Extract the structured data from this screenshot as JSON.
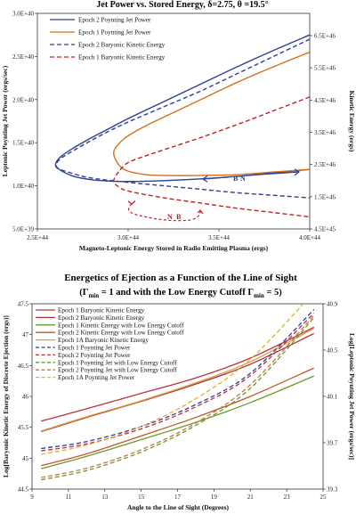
{
  "chart_data": [
    {
      "type": "line",
      "title": "Jet Power vs. Stored Energy, δ=2.75, θ =19.5°",
      "xlabel": "Magneto-Leptonic Energy Stored in Radio Emitting Plasma (ergs)",
      "ylabel": "Leptonic Poynting Jet Power (ergs/sec)",
      "y2label": "Kinetic Energy (ergs)",
      "xlim": [
        2.5e+44,
        4e+44
      ],
      "ylim": [
        5e+39,
        3e+40
      ],
      "y2lim": [
        4.5e+45,
        7e+46
      ],
      "x_ticks": [
        "2.5E+44",
        "3.0E+44",
        "3.5E+44",
        "4.0E+44"
      ],
      "y_ticks": [
        "5.0E+39",
        "1.0E+40",
        "1.5E+40",
        "2.0E+40",
        "2.5E+40",
        "3.0E+40"
      ],
      "y2_ticks": [
        "4.5E+45",
        "1.5E+46",
        "2.5E+46",
        "3.5E+46",
        "4.5E+46",
        "5.5E+46",
        "6.5E+46"
      ],
      "legend_position": "top-left",
      "grid": false,
      "series": [
        {
          "name": "Epoch 2 Poynting Jet Power",
          "color": "#2e3f94",
          "dash": "solid",
          "axis": "left",
          "x": [
            4e+44,
            3.8e+44,
            3.6e+44,
            3.4e+44,
            3.2e+44,
            3e+44,
            2.9e+44,
            2.8e+44,
            2.7e+44,
            2.63e+44,
            2.6e+44,
            2.62e+44,
            2.7e+44,
            2.8e+44,
            2.9e+44,
            3e+44,
            3.2e+44,
            3.4e+44,
            3.6e+44,
            3.8e+44,
            4e+44
          ],
          "y": [
            2.75e+40,
            2.57e+40,
            2.38e+40,
            2.18e+40,
            1.98e+40,
            1.78e+40,
            1.67e+40,
            1.56e+40,
            1.44e+40,
            1.34e+40,
            1.25e+40,
            1.19e+40,
            1.11e+40,
            1.07e+40,
            1.055e+40,
            1.05e+40,
            1.06e+40,
            1.08e+40,
            1.11e+40,
            1.15e+40,
            1.19e+40
          ]
        },
        {
          "name": "Epoch 1 Poynting Jet Power",
          "color": "#d4701a",
          "dash": "solid",
          "axis": "left",
          "x": [
            4e+44,
            3.8e+44,
            3.6e+44,
            3.4e+44,
            3.2e+44,
            3.1e+44,
            3e+44,
            2.95e+44,
            2.92e+44,
            2.95e+44,
            3e+44,
            3.1e+44,
            3.2e+44,
            3.4e+44,
            3.6e+44,
            3.8e+44,
            4e+44
          ],
          "y": [
            2.55e+40,
            2.38e+40,
            2.2e+40,
            2e+40,
            1.8e+40,
            1.7e+40,
            1.58e+40,
            1.49e+40,
            1.38e+40,
            1.24e+40,
            1.17e+40,
            1.13e+40,
            1.12e+40,
            1.12e+40,
            1.13e+40,
            1.16e+40,
            1.19e+40
          ]
        },
        {
          "name": "Epoch 2 Baryonic Kinetic Energy",
          "color": "#2e3f94",
          "dash": "dash",
          "axis": "left",
          "x": [
            4e+44,
            3.8e+44,
            3.6e+44,
            3.4e+44,
            3.2e+44,
            3e+44,
            2.9e+44,
            2.8e+44,
            2.7e+44,
            2.62e+44,
            2.61e+44,
            2.7e+44,
            2.8e+44,
            3e+44,
            3.2e+44,
            3.4e+44,
            3.6e+44,
            3.8e+44,
            4e+44
          ],
          "y": [
            2.7e+40,
            2.5e+40,
            2.3e+40,
            2.1e+40,
            1.92e+40,
            1.74e+40,
            1.64e+40,
            1.53e+40,
            1.41e+40,
            1.3e+40,
            1.21e+40,
            1.14e+40,
            1.09e+40,
            1.04e+40,
            1e+40,
            9.6e+39,
            9.2e+39,
            8.9e+39,
            8.6e+39
          ]
        },
        {
          "name": "Epoch 1 Baryonic Kinetic Energy",
          "color": "#bf2025",
          "dash": "dash",
          "axis": "left",
          "x": [
            4e+44,
            3.8e+44,
            3.6e+44,
            3.4e+44,
            3.2e+44,
            3.1e+44,
            3e+44,
            2.95e+44,
            2.92e+44,
            2.94e+44,
            3e+44,
            3.2e+44,
            3.4e+44,
            3.6e+44,
            3.8e+44,
            4e+44
          ],
          "y": [
            2.03e+40,
            1.87e+40,
            1.71e+40,
            1.56e+40,
            1.42e+40,
            1.35e+40,
            1.27e+40,
            1.17e+40,
            1.06e+40,
            1e+40,
            9.4e+39,
            8.6e+39,
            8e+39,
            7.4e+39,
            6.9e+39,
            6.4e+39
          ]
        }
      ],
      "annotations": [
        {
          "text": "B",
          "color": "#2e3f94",
          "x": 3.76e+44,
          "y": 1.01e+40
        },
        {
          "text": "N",
          "color": "#2e3f94",
          "x": 3.85e+44,
          "y": 1.01e+40
        },
        {
          "text": "N",
          "color": "#bf2025",
          "x": 3.05e+44,
          "y": 6.4e+39
        },
        {
          "text": "B",
          "color": "#bf2025",
          "x": 3.14e+44,
          "y": 6.4e+39
        }
      ]
    },
    {
      "type": "line",
      "title": "Energetics of Ejection as a Function of the Line of Sight",
      "subtitle_parts": [
        "(Γ",
        "min",
        " = 1 and with the Low Energy Cutoff Γ",
        "min",
        " = 5)"
      ],
      "xlabel": "Angle to the Line of Sight (Degrees)",
      "ylabel": "Log[Baryonic Kinetic Energy of Discrete Ejection (ergs)]",
      "y2label": "Log[Leptonic Poynting Jet Power (ergs/sec)]",
      "xlim": [
        9,
        25
      ],
      "ylim": [
        44.5,
        47.5
      ],
      "y2lim": [
        39.3,
        40.9
      ],
      "x_ticks": [
        "9",
        "11",
        "13",
        "15",
        "17",
        "19",
        "21",
        "23",
        "25"
      ],
      "y_ticks": [
        "44.5",
        "45",
        "45.5",
        "46",
        "46.5",
        "47",
        "47.5"
      ],
      "y2_ticks": [
        "39.3",
        "39.7",
        "40.1",
        "40.5",
        "40.9"
      ],
      "legend_position": "top-left",
      "grid": false,
      "x": [
        9.5,
        12,
        15,
        18,
        21,
        24.5
      ],
      "series": [
        {
          "name": "Epoch 1 Baryonic Kinetic Energy",
          "color": "#c0303a",
          "dash": "solid",
          "axis": "left",
          "y": [
            45.6,
            45.8,
            46.05,
            46.3,
            46.62,
            47.12
          ]
        },
        {
          "name": "Epoch 2 Baryonic Kinetic Energy",
          "color": "#b03040",
          "dash": "solid",
          "axis": "left",
          "y": [
            45.43,
            45.66,
            45.92,
            46.2,
            46.52,
            47.02
          ]
        },
        {
          "name": "Epoch 1 Kinetic Energy with Low Energy Cutoff",
          "color": "#6a9a2a",
          "dash": "solid",
          "axis": "left",
          "y": [
            44.83,
            45.03,
            45.3,
            45.58,
            45.9,
            46.33
          ]
        },
        {
          "name": "Epoch 2 Kinetic Energy with Low Energy Cutoff",
          "color": "#c05a2a",
          "dash": "solid",
          "axis": "left",
          "y": [
            44.88,
            45.07,
            45.36,
            45.66,
            46.0,
            46.46
          ]
        },
        {
          "name": "Epoch 1A Baryonic Kinetic Energy",
          "color": "#d4a23a",
          "dash": "solid",
          "axis": "left",
          "y": [
            45.44,
            45.67,
            45.93,
            46.22,
            46.56,
            47.1
          ]
        },
        {
          "name": "Epoch 1 Poynting Jet Power",
          "color": "#2e3f94",
          "dash": "dash",
          "axis": "right",
          "y": [
            39.65,
            39.71,
            39.84,
            40.03,
            40.3,
            40.85
          ]
        },
        {
          "name": "Epoch 2 Poynting Jet Power",
          "color": "#c0303a",
          "dash": "dash",
          "axis": "right",
          "y": [
            39.63,
            39.69,
            39.82,
            40.01,
            40.28,
            40.82
          ]
        },
        {
          "name": "Epoch 1 Poynting Jet with Low Energy Cutoff",
          "color": "#6a9a2a",
          "dash": "dash",
          "axis": "right",
          "y": [
            39.38,
            39.46,
            39.62,
            39.85,
            40.17,
            40.78
          ]
        },
        {
          "name": "Epoch 2 Poynting Jet with Low Energy Cutoff",
          "color": "#c07a3a",
          "dash": "dash",
          "axis": "right",
          "y": [
            39.4,
            39.48,
            39.64,
            39.87,
            40.2,
            40.8
          ]
        },
        {
          "name": "Epoch 1A Poynting Jet Power",
          "color": "#e0b030",
          "dash": "dash",
          "axis": "right",
          "y": [
            39.6,
            39.68,
            39.84,
            40.08,
            40.42,
            41.0
          ]
        }
      ]
    }
  ]
}
